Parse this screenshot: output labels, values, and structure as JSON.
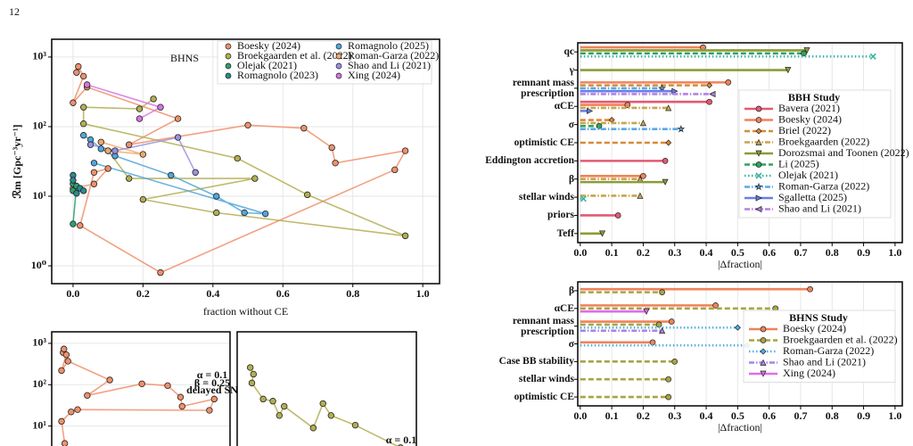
{
  "page_number": "12",
  "chart_data": [
    {
      "type": "line",
      "title": "BHNS",
      "xlabel": "fraction without CE",
      "ylabel": "ℛm [Gpc⁻³yr⁻¹]",
      "yscale": "log",
      "grid": true,
      "xlim": [
        -0.061,
        1.048
      ],
      "ylim": [
        0.555,
        1800
      ],
      "xticks": [
        {
          "value": 0,
          "label": "0.0"
        },
        0.2,
        0.4,
        0.6,
        0.8,
        {
          "value": 1,
          "label": "1.0"
        }
      ],
      "yticks": [
        {
          "value": 1,
          "label": "10⁰"
        },
        {
          "value": 10,
          "label": "10¹"
        },
        {
          "value": 100,
          "label": "10²"
        },
        {
          "value": 1000,
          "label": "10³"
        }
      ],
      "legend_columns": 2,
      "series": [
        {
          "name": "Boesky (2024)",
          "color": "#f0906c",
          "x": [
            0.01,
            0.015,
            0.03,
            0.0,
            0.04,
            0.3,
            0.16,
            0.5,
            0.66,
            0.74,
            0.75,
            0.95,
            0.92,
            0.25,
            0.02,
            0.06,
            0.1,
            0.06,
            0.0
          ],
          "values": [
            600,
            730,
            530,
            220,
            370,
            130,
            55,
            105,
            95,
            50,
            30,
            45,
            24,
            0.8,
            3.8,
            22,
            25,
            15,
            13
          ]
        },
        {
          "name": "Broekgaarden et al. (2022)",
          "color": "#b3ae52",
          "x": [
            0.23,
            0.19,
            0.03,
            0.03,
            0.47,
            0.67,
            0.95,
            0.41,
            0.2,
            0.52,
            0.16,
            0.1
          ],
          "values": [
            250,
            180,
            190,
            110,
            35,
            10.5,
            2.7,
            5.8,
            9,
            18,
            18,
            45
          ]
        },
        {
          "name": "Olejak (2021)",
          "color": "#2e9e70",
          "x": [
            0.0,
            0.0,
            0.01,
            0.0
          ],
          "values": [
            15,
            12,
            14,
            4.0
          ]
        },
        {
          "name": "Romagnolo (2023)",
          "color": "#2b8a8e",
          "x": [
            0.0,
            0.0,
            0.01,
            0.02,
            0.03
          ],
          "values": [
            20,
            17,
            11,
            13,
            12
          ]
        },
        {
          "name": "Romagnolo (2025)",
          "color": "#52a6dc",
          "x": [
            0.03,
            0.05,
            0.08,
            0.12,
            0.28,
            0.41,
            0.49,
            0.55,
            0.06
          ],
          "values": [
            75,
            65,
            48,
            38,
            20,
            10,
            5.8,
            5.6,
            30
          ]
        },
        {
          "name": "Roman-Garza (2022)",
          "color": "#f2a86a",
          "x": [
            0.1,
            0.2,
            0.08
          ],
          "values": [
            45,
            40,
            60
          ]
        },
        {
          "name": "Shao and Li (2021)",
          "color": "#9a90e2",
          "x": [
            0.05,
            0.12,
            0.3,
            0.35
          ],
          "values": [
            55,
            45,
            70,
            22
          ]
        },
        {
          "name": "Xing (2024)",
          "color": "#d774e2",
          "x": [
            0.04,
            0.25,
            0.19
          ],
          "values": [
            400,
            190,
            130
          ]
        }
      ]
    },
    {
      "type": "line",
      "yscale": "log",
      "grid": true,
      "xlim": [
        -0.061,
        1.048
      ],
      "ylim": [
        1,
        1900
      ],
      "yticks": [
        {
          "value": 10,
          "label": "10¹"
        },
        {
          "value": 100,
          "label": "10²"
        },
        {
          "value": 1000,
          "label": "10³"
        }
      ],
      "annotations": [
        "α = 0.1",
        "β = 0.25",
        "delayed SN"
      ],
      "series": [
        {
          "color": "#f0906c",
          "x": [
            0.01,
            0.015,
            0.03,
            0.0,
            0.04,
            0.3,
            0.16,
            0.5,
            0.66,
            0.74,
            0.75,
            0.95,
            0.92,
            0.1,
            0.06,
            0.0,
            0.02
          ],
          "values": [
            600,
            730,
            530,
            220,
            370,
            130,
            55,
            105,
            95,
            50,
            30,
            45,
            24,
            25,
            22,
            13,
            3.8
          ]
        }
      ]
    },
    {
      "type": "line",
      "yscale": "log",
      "grid": true,
      "xlim": [
        -0.061,
        1.048
      ],
      "ylim": [
        1,
        1900
      ],
      "annotations": [
        "α = 0.1"
      ],
      "series": [
        {
          "color": "#b3ae52",
          "x": [
            0.02,
            0.04,
            0.03,
            0.1,
            0.16,
            0.2,
            0.23,
            0.41,
            0.47,
            0.52,
            0.67,
            0.95
          ],
          "values": [
            260,
            180,
            110,
            45,
            40,
            18,
            30,
            9,
            35,
            18,
            10.5,
            3
          ]
        }
      ]
    },
    {
      "type": "range",
      "xlabel": "|Δfraction|",
      "legend_title": "BBH Study",
      "grid": true,
      "xlim": [
        -0.008,
        1.023
      ],
      "xticks": [
        {
          "value": 0,
          "label": "0.0"
        },
        0.1,
        0.2,
        0.3,
        0.4,
        0.5,
        0.6,
        0.7,
        0.8,
        0.9,
        {
          "value": 1,
          "label": "1.0"
        }
      ],
      "categories": [
        "qc",
        "γ",
        "remnant mass\nprescription",
        "αCE",
        "σ",
        "optimistic CE",
        "Eddington accretion",
        "β",
        "stellar winds",
        "priors",
        "Teff"
      ],
      "series": [
        {
          "name": "Bavera (2021)",
          "color": "#e25a72",
          "dash": "solid",
          "marker": "circle",
          "values": [
            null,
            null,
            null,
            0.41,
            null,
            null,
            0.27,
            null,
            null,
            0.12,
            null
          ]
        },
        {
          "name": "Boesky (2024)",
          "color": "#f0825a",
          "dash": "solid",
          "marker": "circle",
          "values": [
            0.39,
            null,
            0.47,
            0.15,
            null,
            null,
            null,
            0.2,
            null,
            null,
            null
          ]
        },
        {
          "name": "Briel (2022)",
          "color": "#d98a36",
          "dash": "dashed",
          "marker": "diamond",
          "values": [
            null,
            null,
            0.41,
            null,
            0.1,
            0.28,
            null,
            null,
            null,
            null,
            null
          ]
        },
        {
          "name": "Broekgaarden (2022)",
          "color": "#c8a44e",
          "dash": "dashdot",
          "marker": "triangle-up",
          "values": [
            null,
            null,
            null,
            0.28,
            0.2,
            null,
            null,
            0.19,
            0.19,
            null,
            null
          ]
        },
        {
          "name": "Dorozsmai and Toonen (2022)",
          "color": "#8c9c36",
          "dash": "solid",
          "marker": "triangle-down",
          "values": [
            0.72,
            0.66,
            null,
            null,
            null,
            null,
            null,
            0.27,
            null,
            null,
            0.07
          ]
        },
        {
          "name": "Li (2025)",
          "color": "#2fa35e",
          "dash": "dashed",
          "marker": "circle",
          "values": [
            0.71,
            null,
            null,
            null,
            0.06,
            null,
            null,
            null,
            null,
            null,
            null
          ]
        },
        {
          "name": "Olejak (2021)",
          "color": "#3cb2a2",
          "dash": "dotted",
          "marker": "x",
          "values": [
            0.93,
            null,
            null,
            null,
            null,
            null,
            null,
            null,
            0.01,
            null,
            null
          ]
        },
        {
          "name": "Roman-Garza (2022)",
          "color": "#5aa8e8",
          "dash": "dashdot",
          "marker": "star",
          "values": [
            null,
            null,
            0.26,
            null,
            0.32,
            null,
            null,
            null,
            null,
            null,
            null
          ]
        },
        {
          "name": "Sgalletta (2025)",
          "color": "#6a7ee8",
          "dash": "solid",
          "marker": "triangle-right",
          "values": [
            null,
            null,
            0.3,
            0.03,
            null,
            null,
            null,
            null,
            null,
            null,
            null
          ]
        },
        {
          "name": "Shao and Li (2021)",
          "color": "#b283e2",
          "dash": "dashdot",
          "marker": "triangle-left",
          "values": [
            null,
            null,
            0.42,
            null,
            null,
            null,
            null,
            null,
            null,
            null,
            null
          ]
        }
      ]
    },
    {
      "type": "range",
      "xlabel": "|Δfraction|",
      "legend_title": "BHNS Study",
      "grid": true,
      "xlim": [
        -0.008,
        1.023
      ],
      "xticks": [
        {
          "value": 0,
          "label": "0.0"
        },
        0.1,
        0.2,
        0.3,
        0.4,
        0.5,
        0.6,
        0.7,
        0.8,
        0.9,
        {
          "value": 1,
          "label": "1.0"
        }
      ],
      "categories": [
        "β",
        "αCE",
        "remnant mass\nprescription",
        "σ",
        "Case BB stability",
        "stellar winds",
        "optimistic CE"
      ],
      "series": [
        {
          "name": "Boesky (2024)",
          "color": "#f0825a",
          "dash": "solid",
          "marker": "circle",
          "values": [
            0.73,
            0.43,
            0.29,
            0.23,
            null,
            null,
            null
          ]
        },
        {
          "name": "Broekgaarden et al. (2022)",
          "color": "#a9a444",
          "dash": "dashed",
          "marker": "circle",
          "values": [
            0.26,
            0.62,
            0.25,
            null,
            0.3,
            0.28,
            0.28
          ]
        },
        {
          "name": "Roman-Garza (2022)",
          "color": "#4fb0e0",
          "dash": "dotted",
          "marker": "diamond",
          "values": [
            null,
            null,
            0.5,
            0.53,
            null,
            null,
            null
          ]
        },
        {
          "name": "Shao and Li (2021)",
          "color": "#a685e6",
          "dash": "dashdot",
          "marker": "triangle-up",
          "values": [
            null,
            null,
            0.26,
            null,
            null,
            null,
            null
          ]
        },
        {
          "name": "Xing (2024)",
          "color": "#de6ee6",
          "dash": "solid",
          "marker": "triangle-down",
          "values": [
            null,
            0.21,
            null,
            null,
            null,
            null,
            null
          ]
        }
      ]
    }
  ]
}
